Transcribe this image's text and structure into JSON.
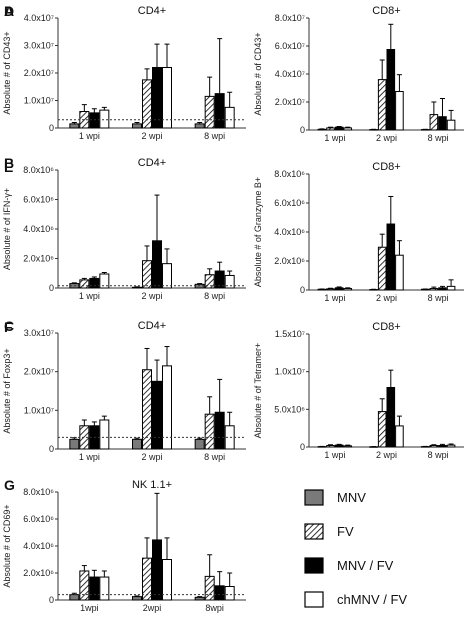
{
  "colors": {
    "MNV": "#7a7a7a",
    "FV": "hatch",
    "MNV / FV": "#000000",
    "chMNV / FV": "#ffffff"
  },
  "legend": [
    {
      "label": "MNV",
      "style": "grey-fill"
    },
    {
      "label": "FV",
      "style": "hatched"
    },
    {
      "label": "MNV / FV",
      "style": "black-fill"
    },
    {
      "label": "chMNV / FV",
      "style": "white-fill"
    }
  ],
  "chart_data": [
    {
      "panel_label": "A",
      "type": "bar",
      "title": "CD4+",
      "ylabel": "Absolute # of CD43+",
      "ylim": [
        0,
        40000000
      ],
      "yticks": [
        {
          "v": 0,
          "t": "0"
        },
        {
          "v": 10000000,
          "t": "1.0x10⁷"
        },
        {
          "v": 20000000,
          "t": "2.0x10⁷"
        },
        {
          "v": 30000000,
          "t": "3.0x10⁷"
        },
        {
          "v": 40000000,
          "t": "4.0x10⁷"
        }
      ],
      "categories": [
        "1 wpi",
        "2 wpi",
        "8 wpi"
      ],
      "series": [
        {
          "name": "MNV",
          "values": [
            1500000,
            1500000,
            1500000
          ],
          "errors": [
            500000,
            500000,
            500000
          ]
        },
        {
          "name": "FV",
          "values": [
            6000000,
            17500000,
            11500000
          ],
          "errors": [
            2500000,
            4000000,
            7000000
          ]
        },
        {
          "name": "MNV / FV",
          "values": [
            5500000,
            22000000,
            12500000
          ],
          "errors": [
            1500000,
            8500000,
            20000000
          ]
        },
        {
          "name": "chMNV / FV",
          "values": [
            6500000,
            22000000,
            7500000
          ],
          "errors": [
            1000000,
            8500000,
            5500000
          ]
        }
      ],
      "baseline": 3000000
    },
    {
      "panel_label": "B",
      "type": "bar",
      "title": "CD4+",
      "ylabel": "Absolute # of IFN-γ+",
      "ylim": [
        0,
        8000000
      ],
      "yticks": [
        {
          "v": 0,
          "t": "0"
        },
        {
          "v": 2000000,
          "t": "2.0x10⁶"
        },
        {
          "v": 4000000,
          "t": "4.0x10⁶"
        },
        {
          "v": 6000000,
          "t": "6.0x10⁶"
        },
        {
          "v": 8000000,
          "t": "8.0x10⁶"
        }
      ],
      "categories": [
        "1 wpi",
        "2 wpi",
        "8 wpi"
      ],
      "series": [
        {
          "name": "MNV",
          "values": [
            300000,
            50000,
            250000
          ],
          "errors": [
            50000,
            30000,
            50000
          ]
        },
        {
          "name": "FV",
          "values": [
            550000,
            1850000,
            900000
          ],
          "errors": [
            100000,
            1000000,
            400000
          ]
        },
        {
          "name": "MNV / FV",
          "values": [
            650000,
            3200000,
            1150000
          ],
          "errors": [
            100000,
            3100000,
            600000
          ]
        },
        {
          "name": "chMNV / FV",
          "values": [
            950000,
            1650000,
            850000
          ],
          "errors": [
            100000,
            1000000,
            300000
          ]
        }
      ],
      "baseline": 150000
    },
    {
      "panel_label": "C",
      "type": "bar",
      "title": "CD4+",
      "ylabel": "Absolute # of Foxp3+",
      "ylim": [
        0,
        30000000
      ],
      "yticks": [
        {
          "v": 0,
          "t": "0"
        },
        {
          "v": 10000000,
          "t": "1.0x10⁷"
        },
        {
          "v": 20000000,
          "t": "2.0x10⁷"
        },
        {
          "v": 30000000,
          "t": "3.0x10⁷"
        }
      ],
      "categories": [
        "1 wpi",
        "2 wpi",
        "8 wpi"
      ],
      "series": [
        {
          "name": "MNV",
          "values": [
            2500000,
            2500000,
            2500000
          ],
          "errors": [
            400000,
            300000,
            300000
          ]
        },
        {
          "name": "FV",
          "values": [
            6000000,
            20500000,
            9000000
          ],
          "errors": [
            1500000,
            5500000,
            4500000
          ]
        },
        {
          "name": "MNV / FV",
          "values": [
            6000000,
            17500000,
            9500000
          ],
          "errors": [
            1000000,
            5500000,
            8500000
          ]
        },
        {
          "name": "chMNV / FV",
          "values": [
            7500000,
            21500000,
            6000000
          ],
          "errors": [
            1000000,
            5000000,
            3500000
          ]
        }
      ],
      "baseline": 3000000
    },
    {
      "panel_label": "D",
      "type": "bar",
      "title": "CD8+",
      "ylabel": "Absolute # of CD43+",
      "ylim": [
        0,
        80000000
      ],
      "yticks": [
        {
          "v": 0,
          "t": "0"
        },
        {
          "v": 20000000,
          "t": "2.0x10⁷"
        },
        {
          "v": 40000000,
          "t": "4.0x10⁷"
        },
        {
          "v": 60000000,
          "t": "6.0x10⁷"
        },
        {
          "v": 80000000,
          "t": "8.0x10⁷"
        }
      ],
      "categories": [
        "1 wpi",
        "2 wpi",
        "8 wpi"
      ],
      "series": [
        {
          "name": "MNV",
          "values": [
            500000,
            300000,
            300000
          ],
          "errors": [
            300000,
            200000,
            200000
          ]
        },
        {
          "name": "FV",
          "values": [
            1500000,
            36000000,
            11000000
          ],
          "errors": [
            500000,
            14000000,
            9000000
          ]
        },
        {
          "name": "MNV / FV",
          "values": [
            2000000,
            57500000,
            9500000
          ],
          "errors": [
            500000,
            18000000,
            13000000
          ]
        },
        {
          "name": "chMNV / FV",
          "values": [
            1500000,
            27500000,
            7000000
          ],
          "errors": [
            500000,
            12000000,
            7000000
          ]
        }
      ],
      "baseline": 0
    },
    {
      "panel_label": "E",
      "type": "bar",
      "title": "CD8+",
      "ylabel": "Absolute # of Granzyme B+",
      "ylim": [
        0,
        8000000
      ],
      "yticks": [
        {
          "v": 0,
          "t": "0"
        },
        {
          "v": 2000000,
          "t": "2.0x10⁶"
        },
        {
          "v": 4000000,
          "t": "4.0x10⁶"
        },
        {
          "v": 6000000,
          "t": "6.0x10⁶"
        },
        {
          "v": 8000000,
          "t": "8.0x10⁶"
        }
      ],
      "categories": [
        "1 wpi",
        "2 wpi",
        "8 wpi"
      ],
      "series": [
        {
          "name": "MNV",
          "values": [
            50000,
            30000,
            50000
          ],
          "errors": [
            20000,
            20000,
            20000
          ]
        },
        {
          "name": "FV",
          "values": [
            80000,
            2950000,
            100000
          ],
          "errors": [
            40000,
            900000,
            100000
          ]
        },
        {
          "name": "MNV / FV",
          "values": [
            150000,
            4550000,
            150000
          ],
          "errors": [
            60000,
            1900000,
            100000
          ]
        },
        {
          "name": "chMNV / FV",
          "values": [
            100000,
            2400000,
            250000
          ],
          "errors": [
            50000,
            1000000,
            450000
          ]
        }
      ],
      "baseline": 0
    },
    {
      "panel_label": "F",
      "type": "bar",
      "title": "CD8+",
      "ylabel": "Absolute # of Tetramer+",
      "ylim": [
        0,
        15000000
      ],
      "yticks": [
        {
          "v": 0,
          "t": "0"
        },
        {
          "v": 5000000,
          "t": "5.0x10⁶"
        },
        {
          "v": 10000000,
          "t": "1.0x10⁷"
        },
        {
          "v": 15000000,
          "t": "1.5x10⁷"
        }
      ],
      "categories": [
        "1 wpi",
        "2 wpi",
        "8 wpi"
      ],
      "series": [
        {
          "name": "MNV",
          "values": [
            50000,
            30000,
            50000
          ],
          "errors": [
            30000,
            20000,
            30000
          ]
        },
        {
          "name": "FV",
          "values": [
            200000,
            4700000,
            200000
          ],
          "errors": [
            100000,
            1700000,
            100000
          ]
        },
        {
          "name": "MNV / FV",
          "values": [
            250000,
            7900000,
            200000
          ],
          "errors": [
            100000,
            2300000,
            150000
          ]
        },
        {
          "name": "chMNV / FV",
          "values": [
            150000,
            2800000,
            250000
          ],
          "errors": [
            100000,
            1300000,
            150000
          ]
        }
      ],
      "baseline": 0
    },
    {
      "panel_label": "G",
      "type": "bar",
      "title": "NK 1.1+",
      "ylabel": "Absolute # of CD69+",
      "ylim": [
        0,
        8000000
      ],
      "yticks": [
        {
          "v": 0,
          "t": "0"
        },
        {
          "v": 2000000,
          "t": "2.0x10⁶"
        },
        {
          "v": 4000000,
          "t": "4.0x10⁶"
        },
        {
          "v": 6000000,
          "t": "6.0x10⁶"
        },
        {
          "v": 8000000,
          "t": "8.0x10⁶"
        }
      ],
      "categories": [
        "1wpi",
        "2wpi",
        "8wpi"
      ],
      "series": [
        {
          "name": "MNV",
          "values": [
            400000,
            250000,
            200000
          ],
          "errors": [
            100000,
            50000,
            50000
          ]
        },
        {
          "name": "FV",
          "values": [
            2150000,
            3100000,
            1750000
          ],
          "errors": [
            400000,
            1500000,
            1600000
          ]
        },
        {
          "name": "MNV / FV",
          "values": [
            1700000,
            4450000,
            1050000
          ],
          "errors": [
            500000,
            3450000,
            1050000
          ]
        },
        {
          "name": "chMNV / FV",
          "values": [
            1700000,
            3000000,
            1000000
          ],
          "errors": [
            450000,
            1600000,
            1000000
          ]
        }
      ],
      "baseline": 400000
    }
  ]
}
